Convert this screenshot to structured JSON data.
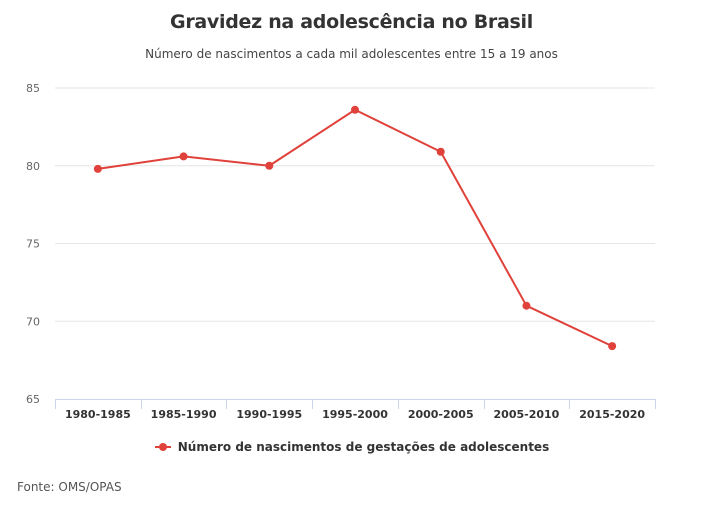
{
  "chart_data": {
    "type": "line",
    "title": "Gravidez na adolescência no Brasil",
    "subtitle": "Número de nascimentos a cada mil adolescentes entre 15 a 19 anos",
    "categories": [
      "1980-1985",
      "1985-1990",
      "1990-1995",
      "1995-2000",
      "2000-2005",
      "2005-2010",
      "2015-2020"
    ],
    "series": [
      {
        "name": "Número de nascimentos de gestações de adolescentes",
        "color": "#e0413a",
        "values": [
          79.8,
          80.6,
          80.0,
          83.6,
          80.9,
          71.0,
          68.4
        ]
      }
    ],
    "ylim": [
      65,
      85
    ],
    "yticks": [
      "85",
      "80",
      "75",
      "70",
      "65"
    ],
    "ytick_values": [
      85,
      80,
      75,
      70,
      65
    ],
    "xlabel": "",
    "ylabel": "",
    "grid": true,
    "legend_position": "bottom",
    "source": "Fonte: OMS/OPAS"
  }
}
